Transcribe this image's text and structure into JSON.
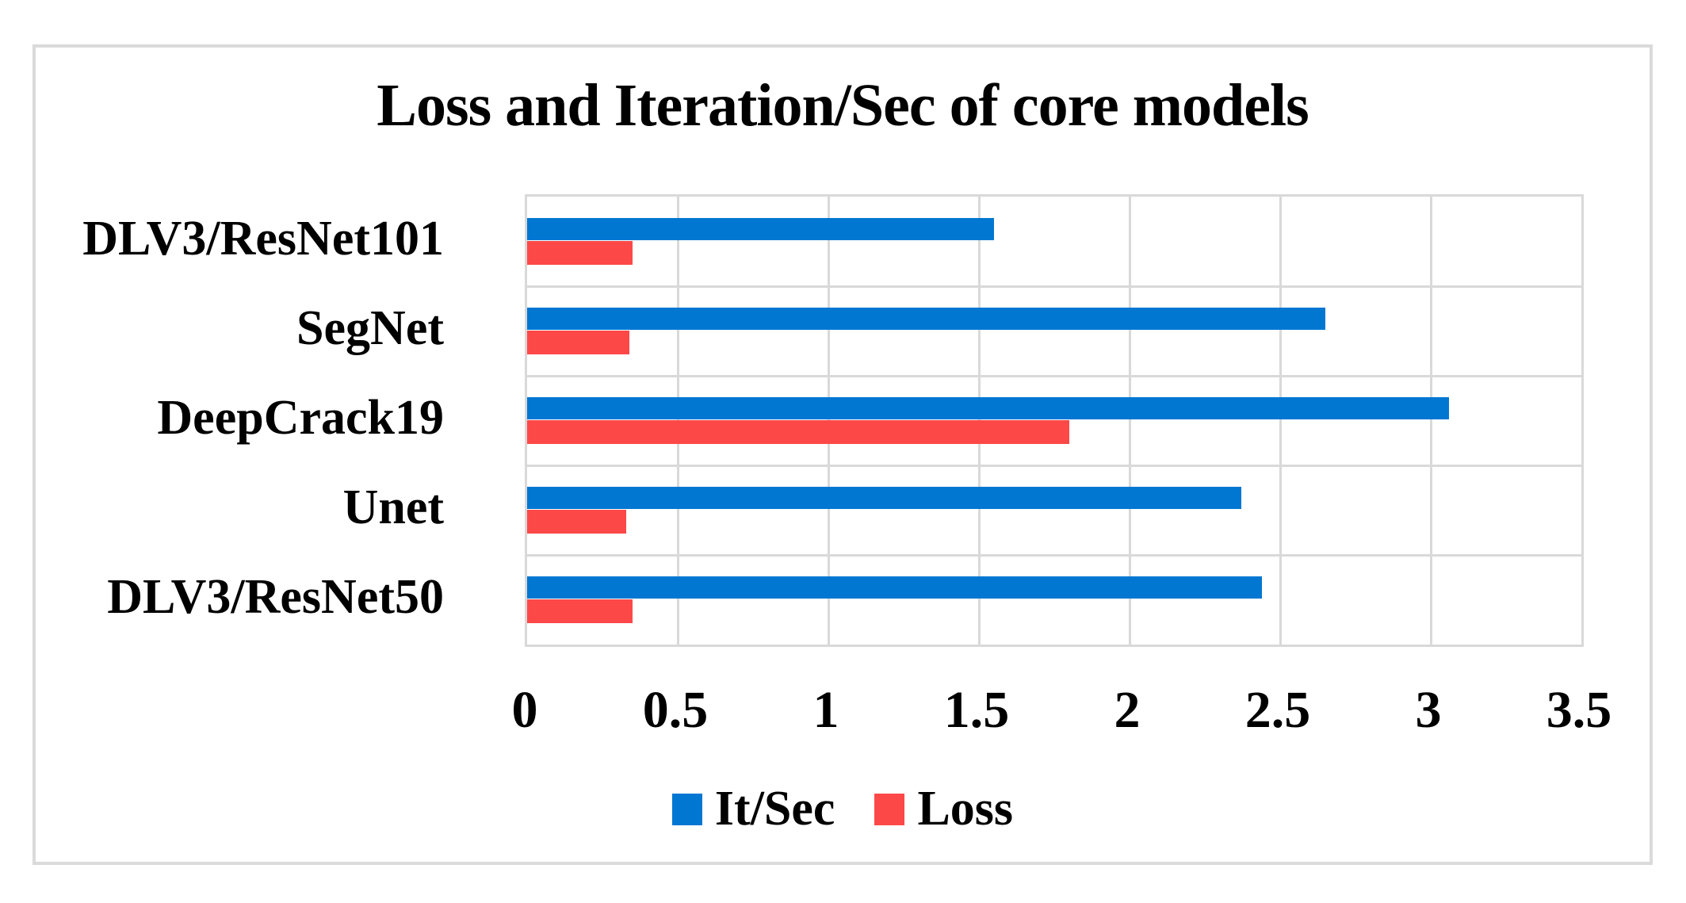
{
  "chart_data": {
    "type": "bar",
    "orientation": "horizontal",
    "title": "Loss and Iteration/Sec of core models",
    "categories": [
      "DLV3/ResNet101",
      "SegNet",
      "DeepCrack19",
      "Unet",
      "DLV3/ResNet50"
    ],
    "series": [
      {
        "name": "It/Sec",
        "color": "#0277D2",
        "values": [
          1.55,
          2.65,
          3.06,
          2.37,
          2.44
        ]
      },
      {
        "name": "Loss",
        "color": "#FD4848",
        "values": [
          0.35,
          0.34,
          1.8,
          0.33,
          0.35
        ]
      }
    ],
    "x_ticks": [
      "0",
      "0.5",
      "1",
      "1.5",
      "2",
      "2.5",
      "3",
      "3.5"
    ],
    "x_tick_values": [
      0,
      0.5,
      1,
      1.5,
      2,
      2.5,
      3,
      3.5
    ],
    "xlim": [
      0,
      3.5
    ],
    "grid": true,
    "legend_position": "bottom",
    "gridline_color": "#D9D9D9",
    "frame_color": "#DADADA",
    "background_color": "#FFFFFF"
  }
}
